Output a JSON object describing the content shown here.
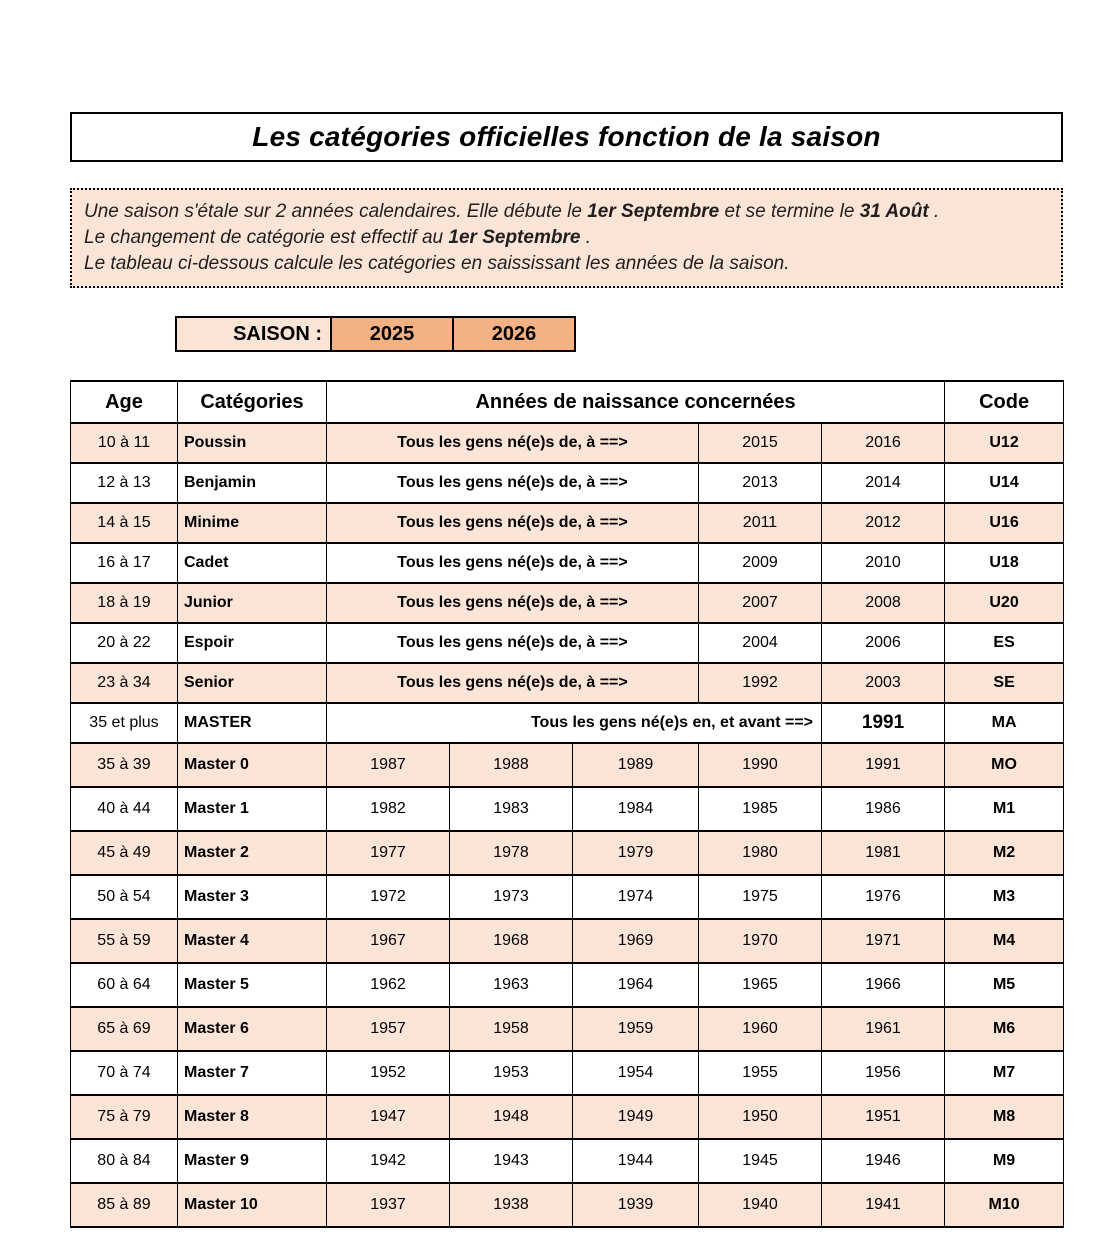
{
  "title": "Les catégories officielles fonction de la saison",
  "info": {
    "lines": [
      [
        {
          "t": "Une saison s'étale sur 2 années calendaires. Elle débute le ",
          "b": false
        },
        {
          "t": " 1er Septembre ",
          "b": true
        },
        {
          "t": " et se termine le ",
          "b": false
        },
        {
          "t": " 31 Août ",
          "b": true
        },
        {
          "t": " .",
          "b": false
        }
      ],
      [
        {
          "t": "Le changement de catégorie est effectif au ",
          "b": false
        },
        {
          "t": " 1er Septembre ",
          "b": true
        },
        {
          "t": " .",
          "b": false
        }
      ],
      [
        {
          "t": "Le tableau ci-dessous calcule les catégories en saississant les années de la saison.",
          "b": false
        }
      ]
    ]
  },
  "saison": {
    "label": "SAISON :",
    "start": "2025",
    "end": "2026"
  },
  "colors": {
    "row_shade": "#fce4d6",
    "accent_orange": "#f4b183",
    "border": "#000000"
  },
  "table": {
    "headers": {
      "age": "Age",
      "categories": "Catégories",
      "years": "Années de naissance concernées",
      "code": "Code"
    },
    "rows": [
      {
        "type": "range",
        "age": "10 à 11",
        "category": "Poussin",
        "text": "Tous les gens né(e)s de,  à  ==>",
        "years": [
          "2015",
          "2016"
        ],
        "code": "U12",
        "shaded": true
      },
      {
        "type": "range",
        "age": "12 à 13",
        "category": "Benjamin",
        "text": "Tous les gens né(e)s de,  à  ==>",
        "years": [
          "2013",
          "2014"
        ],
        "code": "U14",
        "shaded": false
      },
      {
        "type": "range",
        "age": "14 à 15",
        "category": "Minime",
        "text": "Tous les gens né(e)s de,  à  ==>",
        "years": [
          "2011",
          "2012"
        ],
        "code": "U16",
        "shaded": true
      },
      {
        "type": "range",
        "age": "16 à 17",
        "category": "Cadet",
        "text": "Tous les gens né(e)s de,  à  ==>",
        "years": [
          "2009",
          "2010"
        ],
        "code": "U18",
        "shaded": false
      },
      {
        "type": "range",
        "age": "18 à 19",
        "category": "Junior",
        "text": "Tous les gens né(e)s de,  à  ==>",
        "years": [
          "2007",
          "2008"
        ],
        "code": "U20",
        "shaded": true
      },
      {
        "type": "range",
        "age": "20 à 22",
        "category": "Espoir",
        "text": "Tous les gens né(e)s de,  à  ==>",
        "years": [
          "2004",
          "2006"
        ],
        "code": "ES",
        "shaded": false
      },
      {
        "type": "range",
        "age": "23 à 34",
        "category": "Senior",
        "text": "Tous les gens né(e)s de,  à  ==>",
        "years": [
          "1992",
          "2003"
        ],
        "code": "SE",
        "shaded": true
      },
      {
        "type": "master_all",
        "age": "35 et plus",
        "category": "MASTER",
        "text": "Tous les gens né(e)s en, et avant  ==>",
        "years": [
          "1991"
        ],
        "code": "MA",
        "shaded": false
      },
      {
        "type": "years",
        "age": "35 à 39",
        "category": "Master 0",
        "years": [
          "1987",
          "1988",
          "1989",
          "1990",
          "1991"
        ],
        "code": "MO",
        "shaded": true
      },
      {
        "type": "years",
        "age": "40 à 44",
        "category": "Master 1",
        "years": [
          "1982",
          "1983",
          "1984",
          "1985",
          "1986"
        ],
        "code": "M1",
        "shaded": false
      },
      {
        "type": "years",
        "age": "45 à 49",
        "category": "Master 2",
        "years": [
          "1977",
          "1978",
          "1979",
          "1980",
          "1981"
        ],
        "code": "M2",
        "shaded": true
      },
      {
        "type": "years",
        "age": "50 à 54",
        "category": "Master 3",
        "years": [
          "1972",
          "1973",
          "1974",
          "1975",
          "1976"
        ],
        "code": "M3",
        "shaded": false
      },
      {
        "type": "years",
        "age": "55 à 59",
        "category": "Master 4",
        "years": [
          "1967",
          "1968",
          "1969",
          "1970",
          "1971"
        ],
        "code": "M4",
        "shaded": true
      },
      {
        "type": "years",
        "age": "60 à 64",
        "category": "Master 5",
        "years": [
          "1962",
          "1963",
          "1964",
          "1965",
          "1966"
        ],
        "code": "M5",
        "shaded": false
      },
      {
        "type": "years",
        "age": "65 à 69",
        "category": "Master 6",
        "years": [
          "1957",
          "1958",
          "1959",
          "1960",
          "1961"
        ],
        "code": "M6",
        "shaded": true
      },
      {
        "type": "years",
        "age": "70 à 74",
        "category": "Master 7",
        "years": [
          "1952",
          "1953",
          "1954",
          "1955",
          "1956"
        ],
        "code": "M7",
        "shaded": false
      },
      {
        "type": "years",
        "age": "75 à 79",
        "category": "Master 8",
        "years": [
          "1947",
          "1948",
          "1949",
          "1950",
          "1951"
        ],
        "code": "M8",
        "shaded": true
      },
      {
        "type": "years",
        "age": "80 à 84",
        "category": "Master 9",
        "years": [
          "1942",
          "1943",
          "1944",
          "1945",
          "1946"
        ],
        "code": "M9",
        "shaded": false
      },
      {
        "type": "years",
        "age": "85 à 89",
        "category": "Master 10",
        "years": [
          "1937",
          "1938",
          "1939",
          "1940",
          "1941"
        ],
        "code": "M10",
        "shaded": true
      }
    ]
  }
}
